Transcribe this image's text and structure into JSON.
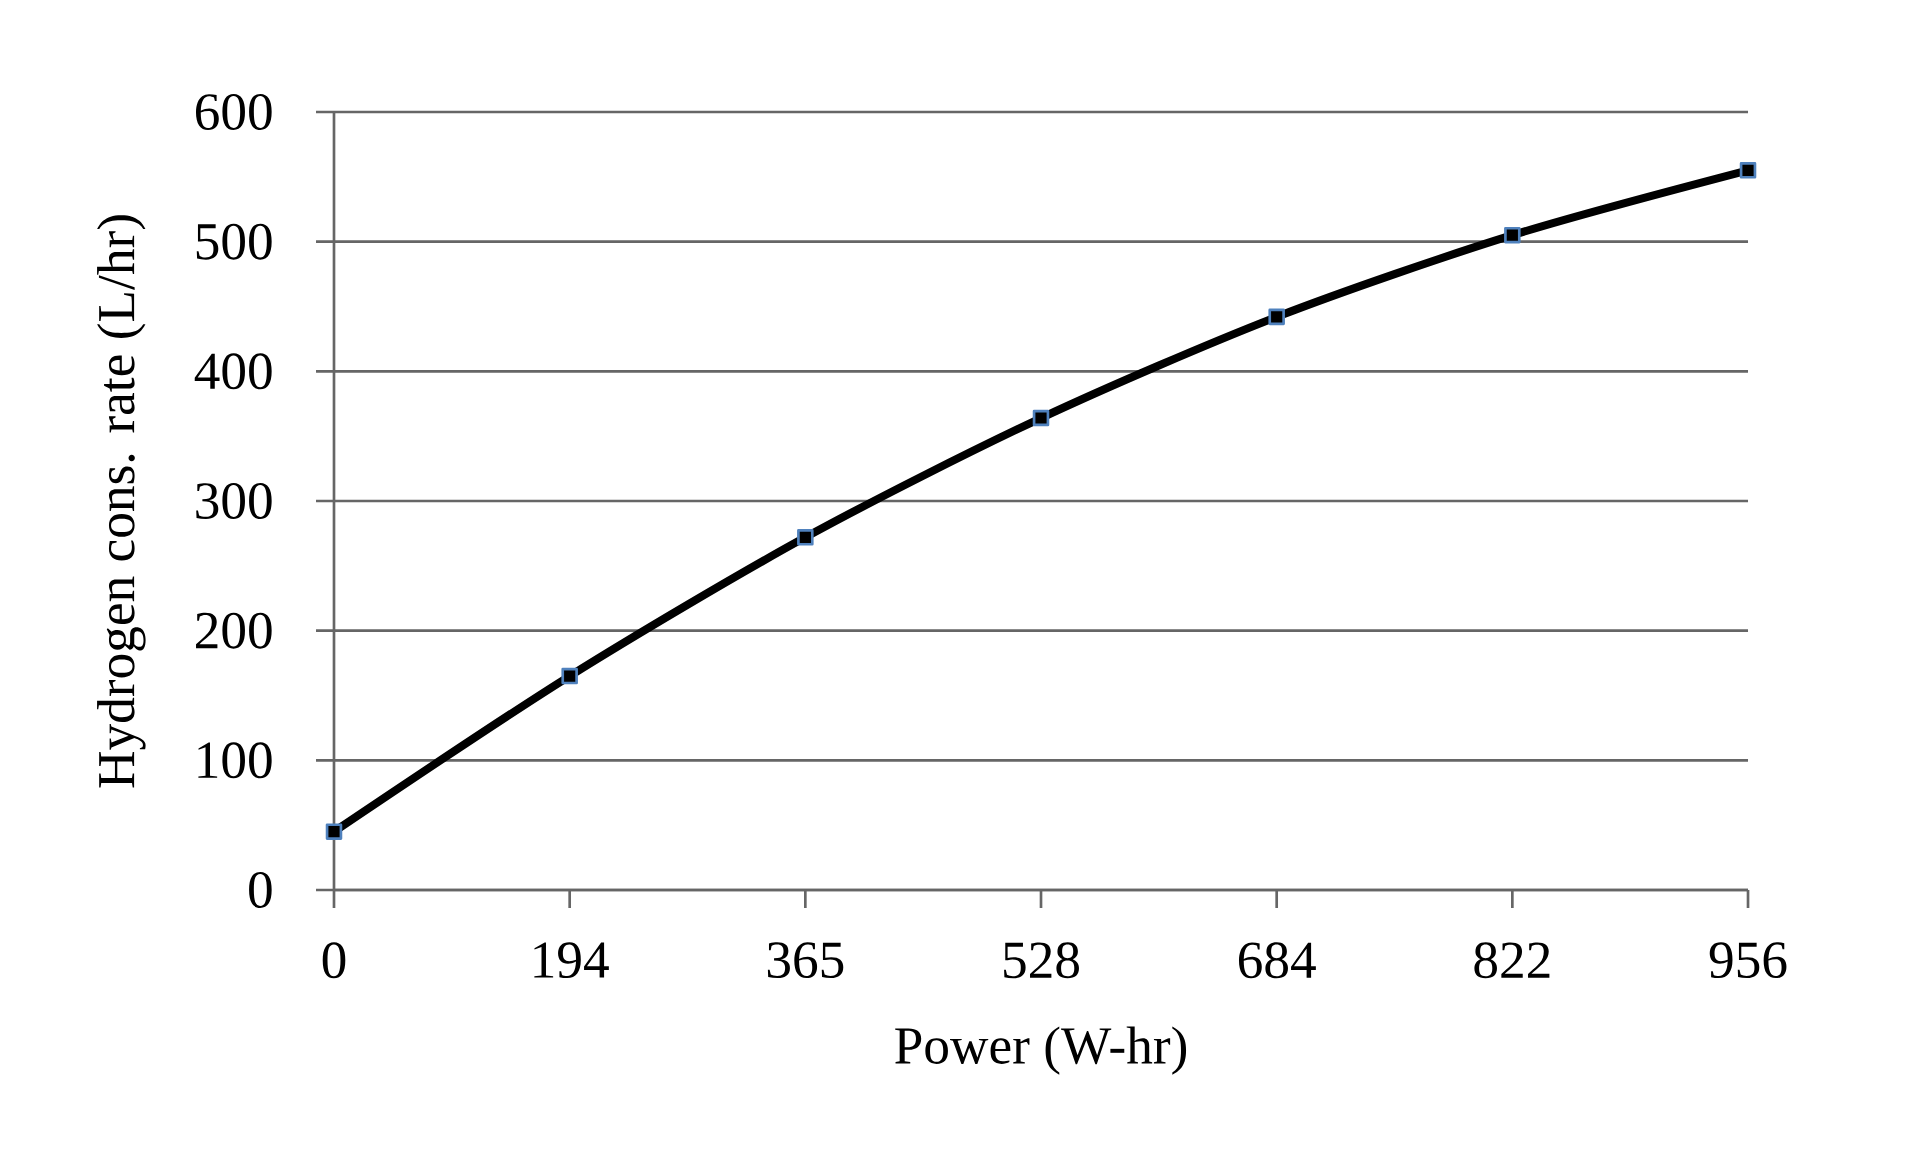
{
  "chart_data": {
    "type": "line",
    "xlabel": "Power  (W-hr)",
    "ylabel": "Hydrogen cons. rate (L/hr)",
    "categories": [
      "0",
      "194",
      "365",
      "528",
      "684",
      "822",
      "956"
    ],
    "series": [
      {
        "color": "#000000",
        "values": [
          45,
          165,
          272,
          364,
          442,
          505,
          555
        ]
      }
    ],
    "ylim": [
      0,
      600
    ],
    "yticks": [
      0,
      100,
      200,
      300,
      400,
      500,
      600
    ],
    "grid": "y",
    "marker": "square",
    "line_style": "solid"
  }
}
